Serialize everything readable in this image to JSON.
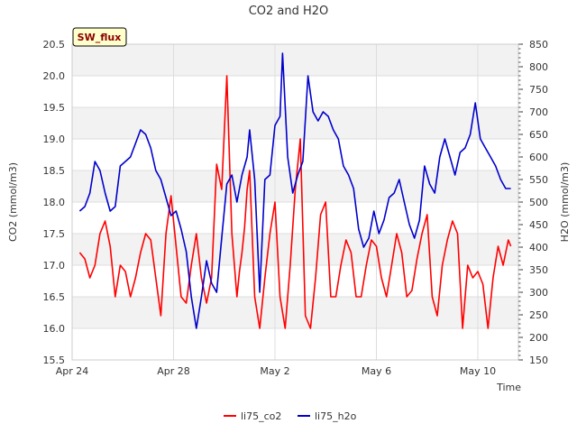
{
  "chart_data": {
    "type": "line",
    "title": "CO2 and H2O",
    "badge": "SW_flux",
    "xlabel": "Time",
    "ylabel_left": "CO2 (mmol/m3)",
    "ylabel_right": "H2O (mmol/m3)",
    "x_start": "Apr 24",
    "x_range_days": [
      0,
      17.6
    ],
    "x_ticks": [
      {
        "label": "Apr 24",
        "day": 0
      },
      {
        "label": "Apr 28",
        "day": 4
      },
      {
        "label": "May 2",
        "day": 8
      },
      {
        "label": "May 6",
        "day": 12
      },
      {
        "label": "May 10",
        "day": 16
      }
    ],
    "ylim_left": [
      15.5,
      20.5
    ],
    "ylim_right": [
      150,
      850
    ],
    "yticks_left": [
      "15.5",
      "16.0",
      "16.5",
      "17.0",
      "17.5",
      "18.0",
      "18.5",
      "19.0",
      "19.5",
      "20.0",
      "20.5"
    ],
    "yticks_right": [
      "150",
      "200",
      "250",
      "300",
      "350",
      "400",
      "450",
      "500",
      "550",
      "600",
      "650",
      "700",
      "750",
      "800",
      "850"
    ],
    "grid": true,
    "legend_position": "bottom",
    "colors": {
      "co2": "#ff0000",
      "h2o": "#0000cc",
      "band": "#f2f2f2",
      "grid": "#dddddd",
      "badge_bg": "#ffffcc"
    },
    "series": [
      {
        "name": "li75_co2",
        "axis": "left",
        "x": [
          0.3,
          0.5,
          0.7,
          0.9,
          1.1,
          1.3,
          1.5,
          1.7,
          1.9,
          2.1,
          2.3,
          2.5,
          2.7,
          2.9,
          3.1,
          3.3,
          3.5,
          3.7,
          3.9,
          4.1,
          4.3,
          4.5,
          4.7,
          4.9,
          5.1,
          5.3,
          5.5,
          5.7,
          5.9,
          6.1,
          6.3,
          6.5,
          6.6,
          6.7,
          6.8,
          6.9,
          7.0,
          7.2,
          7.4,
          7.6,
          7.8,
          8.0,
          8.2,
          8.4,
          8.6,
          8.8,
          9.0,
          9.2,
          9.4,
          9.6,
          9.8,
          10.0,
          10.2,
          10.4,
          10.6,
          10.8,
          11.0,
          11.2,
          11.4,
          11.6,
          11.8,
          12.0,
          12.2,
          12.4,
          12.6,
          12.8,
          13.0,
          13.2,
          13.4,
          13.6,
          13.8,
          14.0,
          14.2,
          14.4,
          14.6,
          14.8,
          15.0,
          15.2,
          15.4,
          15.6,
          15.8,
          16.0,
          16.2,
          16.4,
          16.6,
          16.8,
          17.0,
          17.2,
          17.3
        ],
        "values": [
          17.2,
          17.1,
          16.8,
          17.0,
          17.5,
          17.7,
          17.3,
          16.5,
          17.0,
          16.9,
          16.5,
          16.8,
          17.2,
          17.5,
          17.4,
          16.8,
          16.2,
          17.5,
          18.1,
          17.3,
          16.5,
          16.4,
          17.0,
          17.5,
          16.8,
          16.4,
          16.8,
          18.6,
          18.2,
          20.0,
          17.5,
          16.5,
          16.9,
          17.2,
          17.6,
          18.2,
          18.5,
          16.5,
          16.0,
          16.8,
          17.5,
          18.0,
          16.5,
          16.0,
          17.0,
          18.2,
          19.0,
          16.2,
          16.0,
          16.8,
          17.8,
          18.0,
          16.5,
          16.5,
          17.0,
          17.4,
          17.2,
          16.5,
          16.5,
          17.0,
          17.4,
          17.3,
          16.8,
          16.5,
          17.0,
          17.5,
          17.2,
          16.5,
          16.6,
          17.1,
          17.5,
          17.8,
          16.5,
          16.2,
          17.0,
          17.4,
          17.7,
          17.5,
          16.0,
          17.0,
          16.8,
          16.9,
          16.7,
          16.0,
          16.8,
          17.3,
          17.0,
          17.4,
          17.3
        ]
      },
      {
        "name": "li75_h2o",
        "axis": "right",
        "x": [
          0.3,
          0.5,
          0.7,
          0.9,
          1.1,
          1.3,
          1.5,
          1.7,
          1.9,
          2.1,
          2.3,
          2.5,
          2.7,
          2.9,
          3.1,
          3.3,
          3.5,
          3.7,
          3.9,
          4.1,
          4.3,
          4.5,
          4.7,
          4.9,
          5.1,
          5.3,
          5.5,
          5.7,
          5.9,
          6.1,
          6.3,
          6.5,
          6.7,
          6.9,
          7.0,
          7.2,
          7.4,
          7.6,
          7.8,
          8.0,
          8.2,
          8.3,
          8.5,
          8.7,
          8.9,
          9.1,
          9.3,
          9.5,
          9.7,
          9.9,
          10.1,
          10.3,
          10.5,
          10.7,
          10.9,
          11.1,
          11.3,
          11.5,
          11.7,
          11.9,
          12.1,
          12.3,
          12.5,
          12.7,
          12.9,
          13.1,
          13.3,
          13.5,
          13.7,
          13.9,
          14.1,
          14.3,
          14.5,
          14.7,
          14.9,
          15.1,
          15.3,
          15.5,
          15.7,
          15.9,
          16.1,
          16.3,
          16.5,
          16.7,
          16.9,
          17.1,
          17.3
        ],
        "values": [
          480,
          490,
          520,
          590,
          570,
          520,
          480,
          490,
          580,
          590,
          600,
          630,
          660,
          650,
          620,
          570,
          550,
          510,
          470,
          480,
          440,
          390,
          290,
          220,
          290,
          370,
          320,
          300,
          420,
          540,
          560,
          500,
          560,
          600,
          660,
          550,
          300,
          550,
          560,
          670,
          690,
          830,
          600,
          520,
          560,
          590,
          780,
          700,
          680,
          700,
          690,
          660,
          640,
          580,
          560,
          530,
          440,
          400,
          420,
          480,
          430,
          460,
          510,
          520,
          550,
          500,
          450,
          420,
          460,
          580,
          540,
          520,
          600,
          640,
          600,
          560,
          610,
          620,
          650,
          720,
          640,
          620,
          600,
          580,
          550,
          530,
          530
        ]
      }
    ]
  }
}
